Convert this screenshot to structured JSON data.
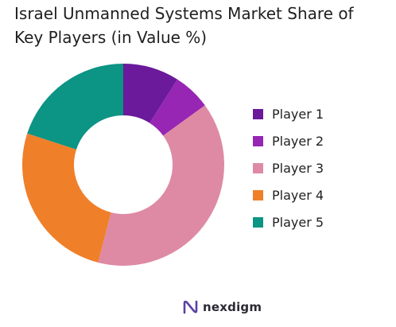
{
  "header": {
    "title": "Israel Unmanned Systems Market Share of Key Players (in Value %)"
  },
  "chart_data": {
    "type": "pie",
    "title": "Israel Unmanned Systems Market Share of Key Players (in Value %)",
    "style": "donut",
    "categories": [
      "Player 1",
      "Player 2",
      "Player 3",
      "Player 4",
      "Player 5"
    ],
    "values": [
      9,
      6,
      39,
      26,
      20
    ],
    "colors": [
      "#6a1a9a",
      "#9626b3",
      "#de8aa4",
      "#f07f2a",
      "#0c9484"
    ],
    "legend_placement": "right"
  },
  "legend": {
    "items": [
      {
        "label": "Player 1",
        "color": "#6a1a9a"
      },
      {
        "label": "Player 2",
        "color": "#9626b3"
      },
      {
        "label": "Player 3",
        "color": "#de8aa4"
      },
      {
        "label": "Player 4",
        "color": "#f07f2a"
      },
      {
        "label": "Player 5",
        "color": "#0c9484"
      }
    ]
  },
  "footer": {
    "brand_name": "nexdigm",
    "brand_icon": "nexdigm-logo-icon",
    "brand_color": "#5b3fa6"
  }
}
